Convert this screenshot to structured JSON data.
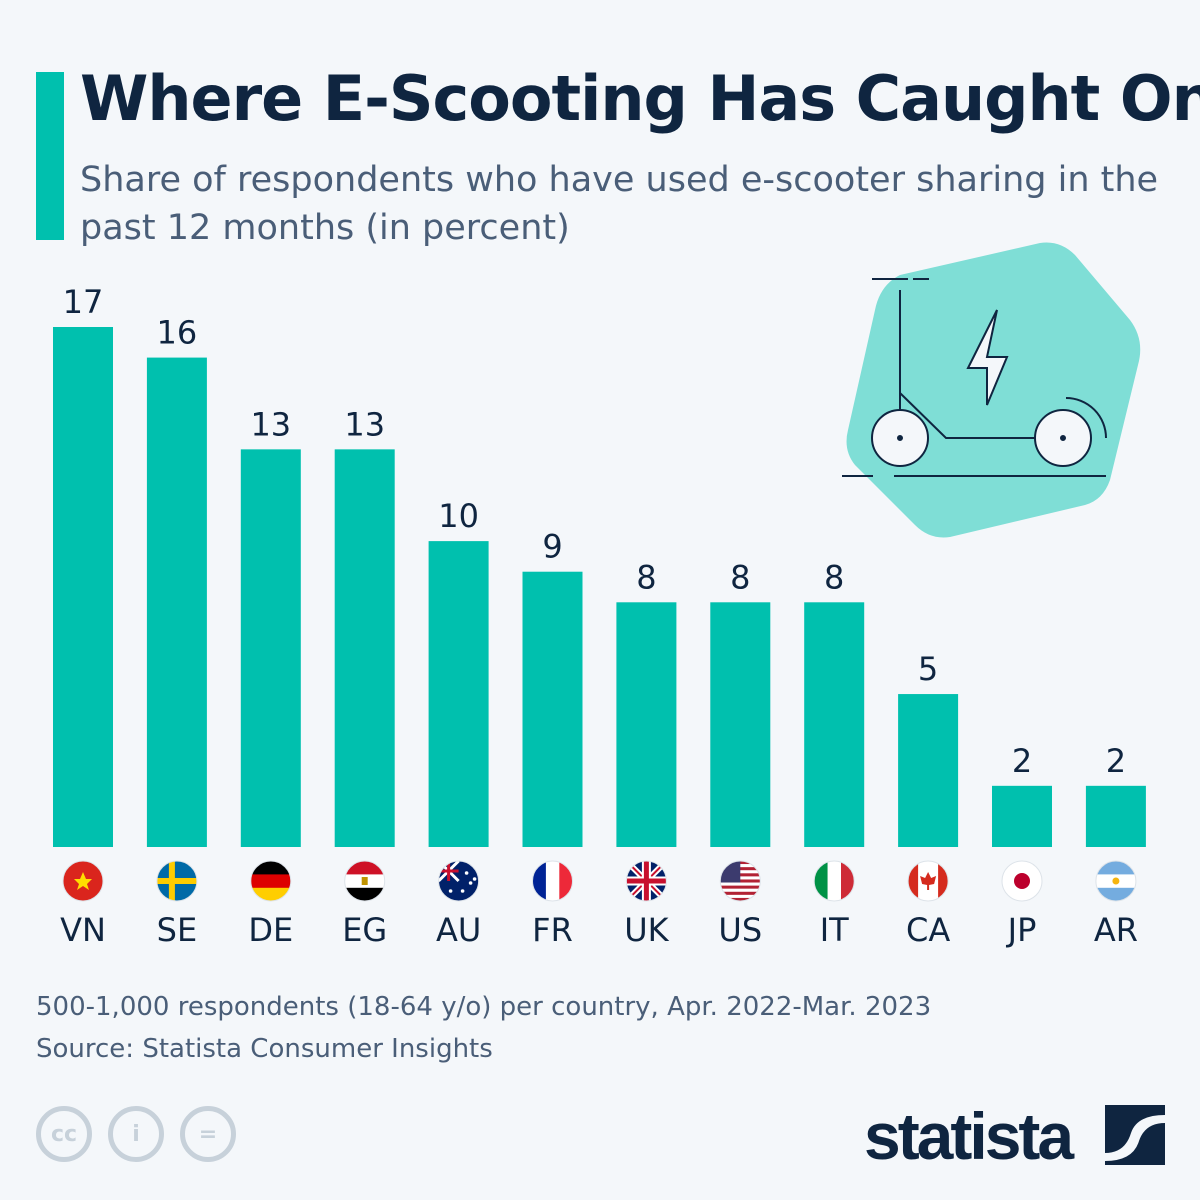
{
  "header": {
    "title": "Where E-Scooting Has Caught On",
    "subtitle": "Share of respondents who have used e-scooter sharing in the past 12 months (in percent)"
  },
  "chart_data": {
    "type": "bar",
    "title": "Where E-Scooting Has Caught On",
    "subtitle": "Share of respondents who have used e-scooter sharing in the past 12 months (in percent)",
    "categories": [
      "VN",
      "SE",
      "DE",
      "EG",
      "AU",
      "FR",
      "UK",
      "US",
      "IT",
      "CA",
      "JP",
      "AR"
    ],
    "values": [
      17,
      16,
      13,
      13,
      10,
      9,
      8,
      8,
      8,
      5,
      2,
      2
    ],
    "ylim": [
      0,
      17
    ],
    "grid": false,
    "bar_color": "#00c0ae",
    "data_labels": true
  },
  "footer": {
    "note": "500-1,000 respondents (18-64 y/o) per country, Apr. 2022-Mar. 2023",
    "source": "Source: Statista Consumer Insights",
    "license_icons": [
      "cc-icon",
      "attribution-icon",
      "no-derivatives-icon"
    ],
    "logo": "statista"
  }
}
